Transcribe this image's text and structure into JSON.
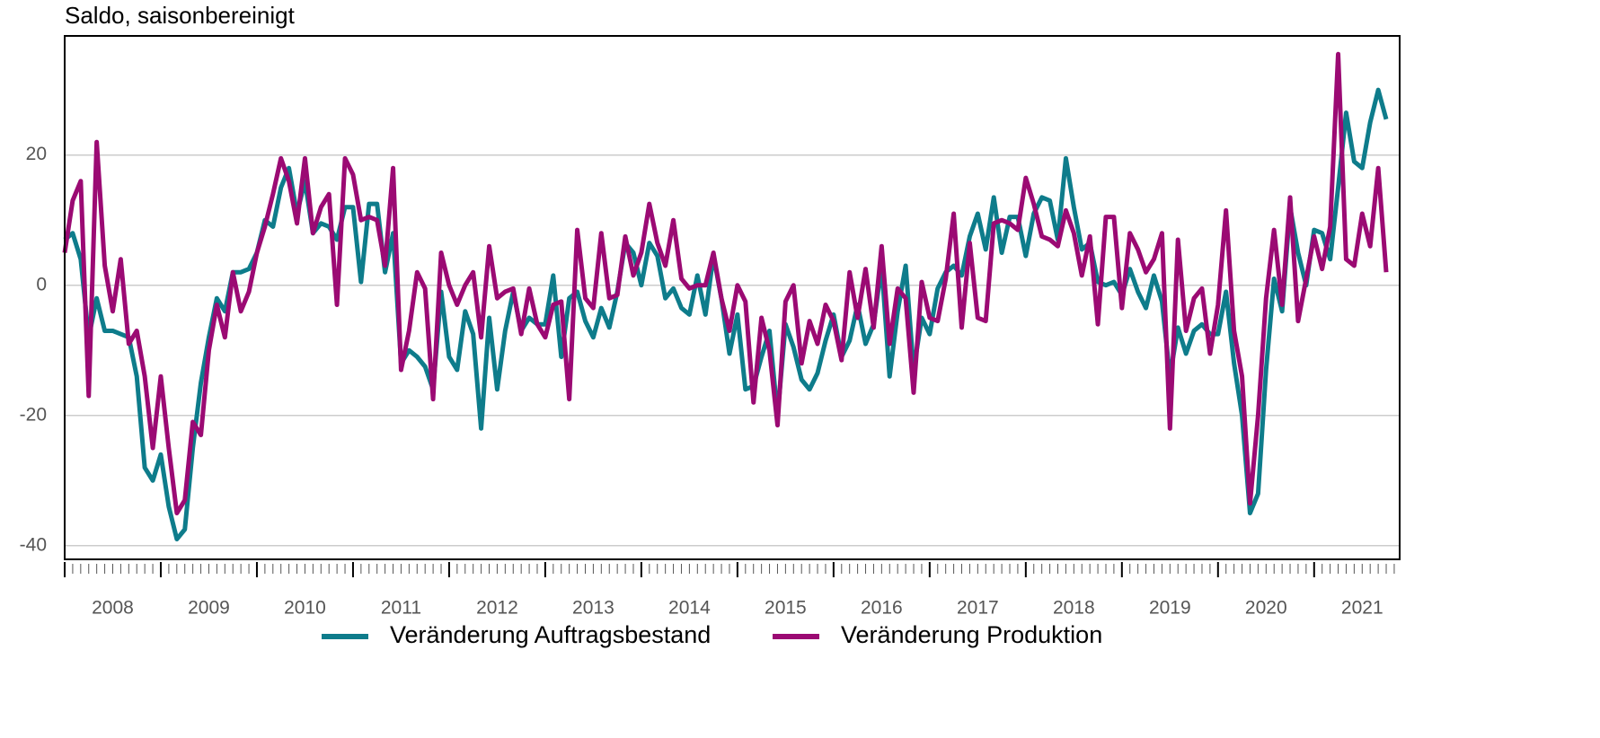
{
  "chart_data": {
    "type": "line",
    "title": "Saldo, saisonbereinigt",
    "x": [
      2008,
      2008.083,
      2008.167,
      2008.25,
      2008.333,
      2008.417,
      2008.5,
      2008.583,
      2008.667,
      2008.75,
      2008.833,
      2008.917,
      2009,
      2009.083,
      2009.167,
      2009.25,
      2009.333,
      2009.417,
      2009.5,
      2009.583,
      2009.667,
      2009.75,
      2009.833,
      2009.917,
      2010,
      2010.083,
      2010.167,
      2010.25,
      2010.333,
      2010.417,
      2010.5,
      2010.583,
      2010.667,
      2010.75,
      2010.833,
      2010.917,
      2011,
      2011.083,
      2011.167,
      2011.25,
      2011.333,
      2011.417,
      2011.5,
      2011.583,
      2011.667,
      2011.75,
      2011.833,
      2011.917,
      2012,
      2012.083,
      2012.167,
      2012.25,
      2012.333,
      2012.417,
      2012.5,
      2012.583,
      2012.667,
      2012.75,
      2012.833,
      2012.917,
      2013,
      2013.083,
      2013.167,
      2013.25,
      2013.333,
      2013.417,
      2013.5,
      2013.583,
      2013.667,
      2013.75,
      2013.833,
      2013.917,
      2014,
      2014.083,
      2014.167,
      2014.25,
      2014.333,
      2014.417,
      2014.5,
      2014.583,
      2014.667,
      2014.75,
      2014.833,
      2014.917,
      2015,
      2015.083,
      2015.167,
      2015.25,
      2015.333,
      2015.417,
      2015.5,
      2015.583,
      2015.667,
      2015.75,
      2015.833,
      2015.917,
      2016,
      2016.083,
      2016.167,
      2016.25,
      2016.333,
      2016.417,
      2016.5,
      2016.583,
      2016.667,
      2016.75,
      2016.833,
      2016.917,
      2017,
      2017.083,
      2017.167,
      2017.25,
      2017.333,
      2017.417,
      2017.5,
      2017.583,
      2017.667,
      2017.75,
      2017.833,
      2017.917,
      2018,
      2018.083,
      2018.167,
      2018.25,
      2018.333,
      2018.417,
      2018.5,
      2018.583,
      2018.667,
      2018.75,
      2018.833,
      2018.917,
      2019,
      2019.083,
      2019.167,
      2019.25,
      2019.333,
      2019.417,
      2019.5,
      2019.583,
      2019.667,
      2019.75,
      2019.833,
      2019.917,
      2020,
      2020.083,
      2020.167,
      2020.25,
      2020.333,
      2020.417,
      2020.5,
      2020.583,
      2020.667,
      2020.75,
      2020.833,
      2020.917,
      2021,
      2021.083,
      2021.167,
      2021.25,
      2021.333,
      2021.417,
      2021.5,
      2021.583,
      2021.667,
      2021.75
    ],
    "series": [
      {
        "name": "Veränderung Auftragsbestand",
        "color": "#0e7c8b",
        "values": [
          7,
          8,
          4,
          -8,
          -2,
          -7,
          -7,
          -7.5,
          -8,
          -14,
          -28,
          -30,
          -26,
          -34,
          -39,
          -37.5,
          -25,
          -15,
          -8,
          -2,
          -4,
          2,
          2,
          2.5,
          5,
          10,
          9,
          15,
          18,
          11,
          16,
          8,
          9.5,
          9,
          7,
          12,
          12,
          0.5,
          12.5,
          12.5,
          2,
          8,
          -12,
          -10,
          -11,
          -12.5,
          -16,
          -1,
          -11,
          -13,
          -4,
          -7.5,
          -22,
          -5,
          -16,
          -7,
          -1,
          -7,
          -5,
          -6,
          -6,
          1.5,
          -11,
          -2,
          -1,
          -5.5,
          -8,
          -3.5,
          -6.5,
          -1,
          6.5,
          5,
          0,
          6.5,
          4.5,
          -2,
          -0.5,
          -3.5,
          -4.5,
          1.5,
          -4.5,
          4.5,
          -2,
          -10.5,
          -4.5,
          -16,
          -15.5,
          -11,
          -7,
          -20,
          -6,
          -9.5,
          -14.5,
          -16,
          -13.5,
          -8.5,
          -4.5,
          -11,
          -8.5,
          -3,
          -9,
          -6,
          3,
          -14,
          -4,
          3,
          -13,
          -5,
          -7.5,
          -0.5,
          2,
          3,
          1.5,
          7.5,
          11,
          5.5,
          13.5,
          5,
          10.5,
          10.5,
          4.5,
          11,
          13.5,
          13,
          7,
          19.5,
          12,
          5.5,
          6.5,
          0.5,
          0,
          0.5,
          -1.5,
          2.5,
          -1,
          -3.5,
          1.5,
          -2.5,
          -14,
          -6.5,
          -10.5,
          -7,
          -6,
          -7.5,
          -7.5,
          -1,
          -12,
          -20,
          -35,
          -32,
          -13,
          1,
          -4,
          12,
          5,
          0,
          8.5,
          8,
          4,
          15,
          26.5,
          19,
          18,
          25,
          30,
          25.5
        ]
      },
      {
        "name": "Veränderung Produktion",
        "color": "#9b0a73",
        "values": [
          5,
          13,
          16,
          -17,
          22,
          3,
          -4,
          4,
          -9,
          -7,
          -14,
          -25,
          -14,
          -25,
          -35,
          -33,
          -21,
          -23,
          -10,
          -3,
          -8,
          2,
          -4,
          -1,
          5,
          9,
          14,
          19.5,
          16,
          9.5,
          19.5,
          8,
          12,
          14,
          -3,
          19.5,
          17,
          10,
          10.5,
          10,
          3,
          18,
          -13,
          -7,
          2,
          -0.5,
          -17.5,
          5,
          0,
          -3,
          0,
          2,
          -8,
          6,
          -2,
          -1,
          -0.5,
          -7.5,
          -0.5,
          -6,
          -8,
          -3,
          -2.5,
          -17.5,
          8.5,
          -2,
          -3.5,
          8,
          -2,
          -1.5,
          7.5,
          1.5,
          5,
          12.5,
          6.5,
          3,
          10,
          1,
          -0.5,
          0,
          0,
          5,
          -2,
          -7,
          0,
          -2.5,
          -18,
          -5,
          -10,
          -21.5,
          -2.5,
          0,
          -12,
          -5.5,
          -9,
          -3,
          -5.5,
          -11.5,
          2,
          -5,
          2.5,
          -6.5,
          6,
          -9,
          -0.5,
          -2,
          -16.5,
          0.5,
          -5,
          -5.5,
          1,
          11,
          -6.5,
          6.5,
          -5,
          -5.5,
          9.5,
          10,
          9.5,
          8.5,
          16.5,
          12.5,
          7.5,
          7,
          6,
          11.5,
          8,
          1.5,
          7.5,
          -6,
          10.5,
          10.5,
          -3.5,
          8,
          5.5,
          2,
          4,
          8,
          -22,
          7,
          -7,
          -2,
          -0.5,
          -10.5,
          -3,
          11.5,
          -7,
          -14,
          -33.5,
          -20,
          -2,
          8.5,
          -3,
          13.5,
          -5.5,
          1,
          7.5,
          2.5,
          9,
          35.5,
          4,
          3,
          11,
          6,
          18,
          2
        ]
      }
    ],
    "xlim": [
      2008,
      2021.89
    ],
    "xticks": [
      2008,
      2009,
      2010,
      2011,
      2012,
      2013,
      2014,
      2015,
      2016,
      2017,
      2018,
      2019,
      2020,
      2021
    ],
    "ylim": [
      -42.1,
      38.3
    ],
    "yticks": [
      -40,
      -20,
      0,
      20
    ],
    "grid": true,
    "legend": "bottom"
  }
}
